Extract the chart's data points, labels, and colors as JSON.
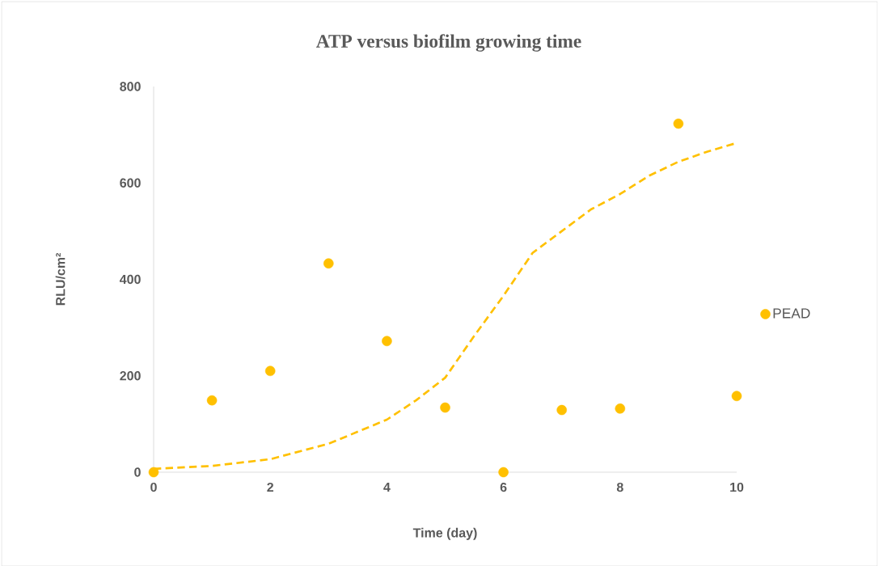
{
  "chart_data": {
    "type": "scatter",
    "title": "ATP versus biofilm growing time",
    "xlabel": "Time (day)",
    "ylabel": "RLU/cm²",
    "xlim": [
      0,
      10
    ],
    "ylim": [
      0,
      800
    ],
    "xticks": [
      0,
      2,
      4,
      6,
      8,
      10
    ],
    "yticks": [
      0,
      200,
      400,
      600,
      800
    ],
    "grid": false,
    "legend": "right",
    "marker": "circle",
    "series": [
      {
        "name": "PEAD",
        "color": "#ffc000",
        "x": [
          0,
          1,
          2,
          3,
          4,
          5,
          6,
          7,
          8,
          9,
          10
        ],
        "values": [
          0,
          149,
          210,
          433,
          272,
          134,
          0,
          129,
          132,
          723,
          158
        ]
      },
      {
        "type": "line",
        "color": "#ffc000",
        "line_style": "dashed",
        "marker": "none",
        "x": [
          0,
          1,
          2,
          3,
          4,
          4.5,
          5,
          5.5,
          6,
          6.5,
          7,
          7.5,
          8,
          8.5,
          9,
          9.5,
          10
        ],
        "values": [
          7,
          13,
          27,
          59,
          109,
          149,
          196,
          283,
          366,
          455,
          500,
          545,
          577,
          615,
          644,
          665,
          683
        ]
      }
    ]
  }
}
